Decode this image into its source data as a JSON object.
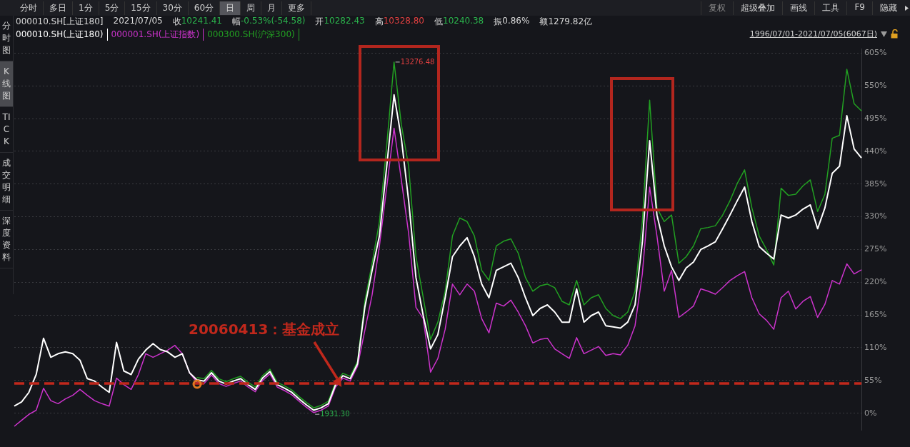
{
  "chart_data": {
    "type": "line",
    "categories": [
      null,
      null,
      null,
      null,
      null,
      null,
      null,
      null,
      null,
      null,
      null,
      null,
      null,
      null,
      null,
      null,
      null,
      null,
      null,
      null,
      null,
      null,
      null,
      null,
      null,
      null,
      null,
      null,
      null,
      null,
      null,
      null,
      null,
      null,
      null,
      null,
      null,
      null,
      null,
      null,
      null,
      null,
      null,
      null,
      null,
      null,
      null,
      null,
      null,
      null,
      null,
      null,
      null,
      null,
      null,
      null,
      null,
      null,
      null,
      null,
      null,
      null,
      null,
      null,
      null,
      null,
      null,
      null,
      null,
      null,
      null,
      null,
      null,
      null,
      null,
      null,
      null,
      null,
      null,
      null,
      null,
      null,
      null,
      null,
      null,
      null,
      null,
      null,
      null,
      null,
      null,
      null,
      null,
      null,
      null,
      null,
      null,
      null,
      null,
      null,
      null,
      null,
      null,
      null,
      null,
      null,
      null,
      null,
      null,
      null,
      null,
      null,
      null,
      null,
      null,
      null,
      null
    ],
    "series": [
      {
        "name": "000010.SH(上证180)",
        "color": "#ffffff",
        "values": [
          12,
          19,
          35,
          65,
          126,
          94,
          100,
          103,
          100,
          89,
          58,
          54,
          44,
          35,
          119,
          71,
          65,
          91,
          106,
          117,
          107,
          103,
          94,
          100,
          68,
          56,
          54,
          68,
          54,
          49,
          54,
          58,
          48,
          40,
          59,
          70,
          48,
          42,
          35,
          24,
          14,
          5,
          9,
          16,
          48,
          63,
          58,
          83,
          178,
          240,
          298,
          415,
          535,
          462,
          357,
          228,
          164,
          108,
          132,
          194,
          263,
          281,
          295,
          263,
          217,
          194,
          240,
          246,
          252,
          228,
          194,
          164,
          176,
          182,
          170,
          153,
          153,
          209,
          153,
          164,
          170,
          147,
          145,
          143,
          153,
          182,
          287,
          458,
          333,
          281,
          246,
          223,
          244,
          254,
          275,
          281,
          288,
          310,
          333,
          357,
          380,
          322,
          280,
          269,
          259,
          333,
          328,
          333,
          343,
          350,
          310,
          345,
          403,
          415,
          500,
          444,
          429
        ]
      },
      {
        "name": "000001.SH(上证指数)",
        "color": "#cc33cc",
        "values": [
          -22,
          -12,
          -2,
          5,
          42,
          21,
          16,
          24,
          30,
          40,
          30,
          21,
          16,
          12,
          59,
          48,
          40,
          65,
          100,
          94,
          100,
          106,
          114,
          100,
          68,
          52,
          50,
          64,
          50,
          45,
          50,
          54,
          44,
          36,
          55,
          66,
          44,
          38,
          31,
          20,
          10,
          1,
          5,
          12,
          44,
          59,
          54,
          79,
          139,
          199,
          281,
          380,
          479,
          392,
          302,
          178,
          159,
          69,
          92,
          141,
          217,
          199,
          217,
          205,
          159,
          135,
          185,
          180,
          190,
          170,
          147,
          118,
          124,
          126,
          108,
          100,
          92,
          127,
          100,
          106,
          112,
          97,
          100,
          98,
          114,
          147,
          234,
          380,
          298,
          205,
          240,
          161,
          170,
          180,
          209,
          205,
          200,
          211,
          223,
          231,
          238,
          194,
          167,
          156,
          141,
          194,
          205,
          175,
          188,
          196,
          161,
          183,
          223,
          217,
          251,
          234,
          241
        ]
      },
      {
        "name": "000300.SH(沪深300)",
        "color": "#22a022",
        "values": [
          null,
          null,
          null,
          null,
          null,
          null,
          null,
          null,
          null,
          null,
          null,
          null,
          null,
          null,
          null,
          null,
          null,
          null,
          null,
          null,
          null,
          null,
          null,
          null,
          null,
          60,
          58,
          72,
          58,
          53,
          58,
          62,
          52,
          44,
          63,
          74,
          52,
          46,
          39,
          28,
          18,
          9,
          13,
          20,
          52,
          67,
          62,
          87,
          188,
          252,
          322,
          450,
          590,
          485,
          415,
          263,
          194,
          124,
          153,
          205,
          298,
          328,
          322,
          298,
          240,
          223,
          281,
          289,
          293,
          269,
          228,
          205,
          214,
          217,
          211,
          188,
          182,
          223,
          182,
          194,
          199,
          176,
          164,
          159,
          170,
          205,
          322,
          526,
          345,
          322,
          333,
          252,
          263,
          281,
          310,
          312,
          315,
          333,
          357,
          386,
          409,
          345,
          298,
          275,
          249,
          378,
          366,
          368,
          382,
          392,
          339,
          368,
          462,
          467,
          578,
          520,
          508
        ]
      }
    ],
    "ylim": [
      -28,
      612
    ],
    "yticks": [
      {
        "value": 0,
        "label": "0%"
      },
      {
        "value": 55,
        "label": "55%"
      },
      {
        "value": 110,
        "label": "110%"
      },
      {
        "value": 165,
        "label": "165%"
      },
      {
        "value": 220,
        "label": "220%"
      },
      {
        "value": 275,
        "label": "275%"
      },
      {
        "value": 330,
        "label": "330%"
      },
      {
        "value": 385,
        "label": "385%"
      },
      {
        "value": 440,
        "label": "440%"
      },
      {
        "value": 495,
        "label": "495%"
      },
      {
        "value": 550,
        "label": "550%"
      },
      {
        "value": 605,
        "label": "605%"
      }
    ],
    "grid": "y",
    "legend": "top left",
    "tick_labels": "y",
    "ref_lines": [
      {
        "axis": "y",
        "value": 50,
        "color": "#c0281c",
        "line_style": "dashed"
      }
    ],
    "annotations": [
      "20060413：基金成立",
      "13276.48",
      "1931.30",
      "1996/07/01-2021/07/05(6067日)",
      "分时",
      "多日",
      "1分",
      "5分",
      "15分",
      "30分",
      "60分",
      "日",
      "周",
      "月",
      "更多",
      "复权",
      "超级叠加",
      "画线",
      "工具",
      "F9",
      "隐藏",
      "分时图",
      "K线图",
      "TICK",
      "成交明细",
      "深度资料",
      "000010.SH[上证180]",
      "2021/07/05",
      "收",
      "10241.41",
      "幅",
      "-0.53%(-54.58)",
      "开",
      "10282.43",
      "高",
      "10328.80",
      "低",
      "10240.38",
      "振",
      "0.86%",
      "额",
      "1279.82亿"
    ]
  }
}
